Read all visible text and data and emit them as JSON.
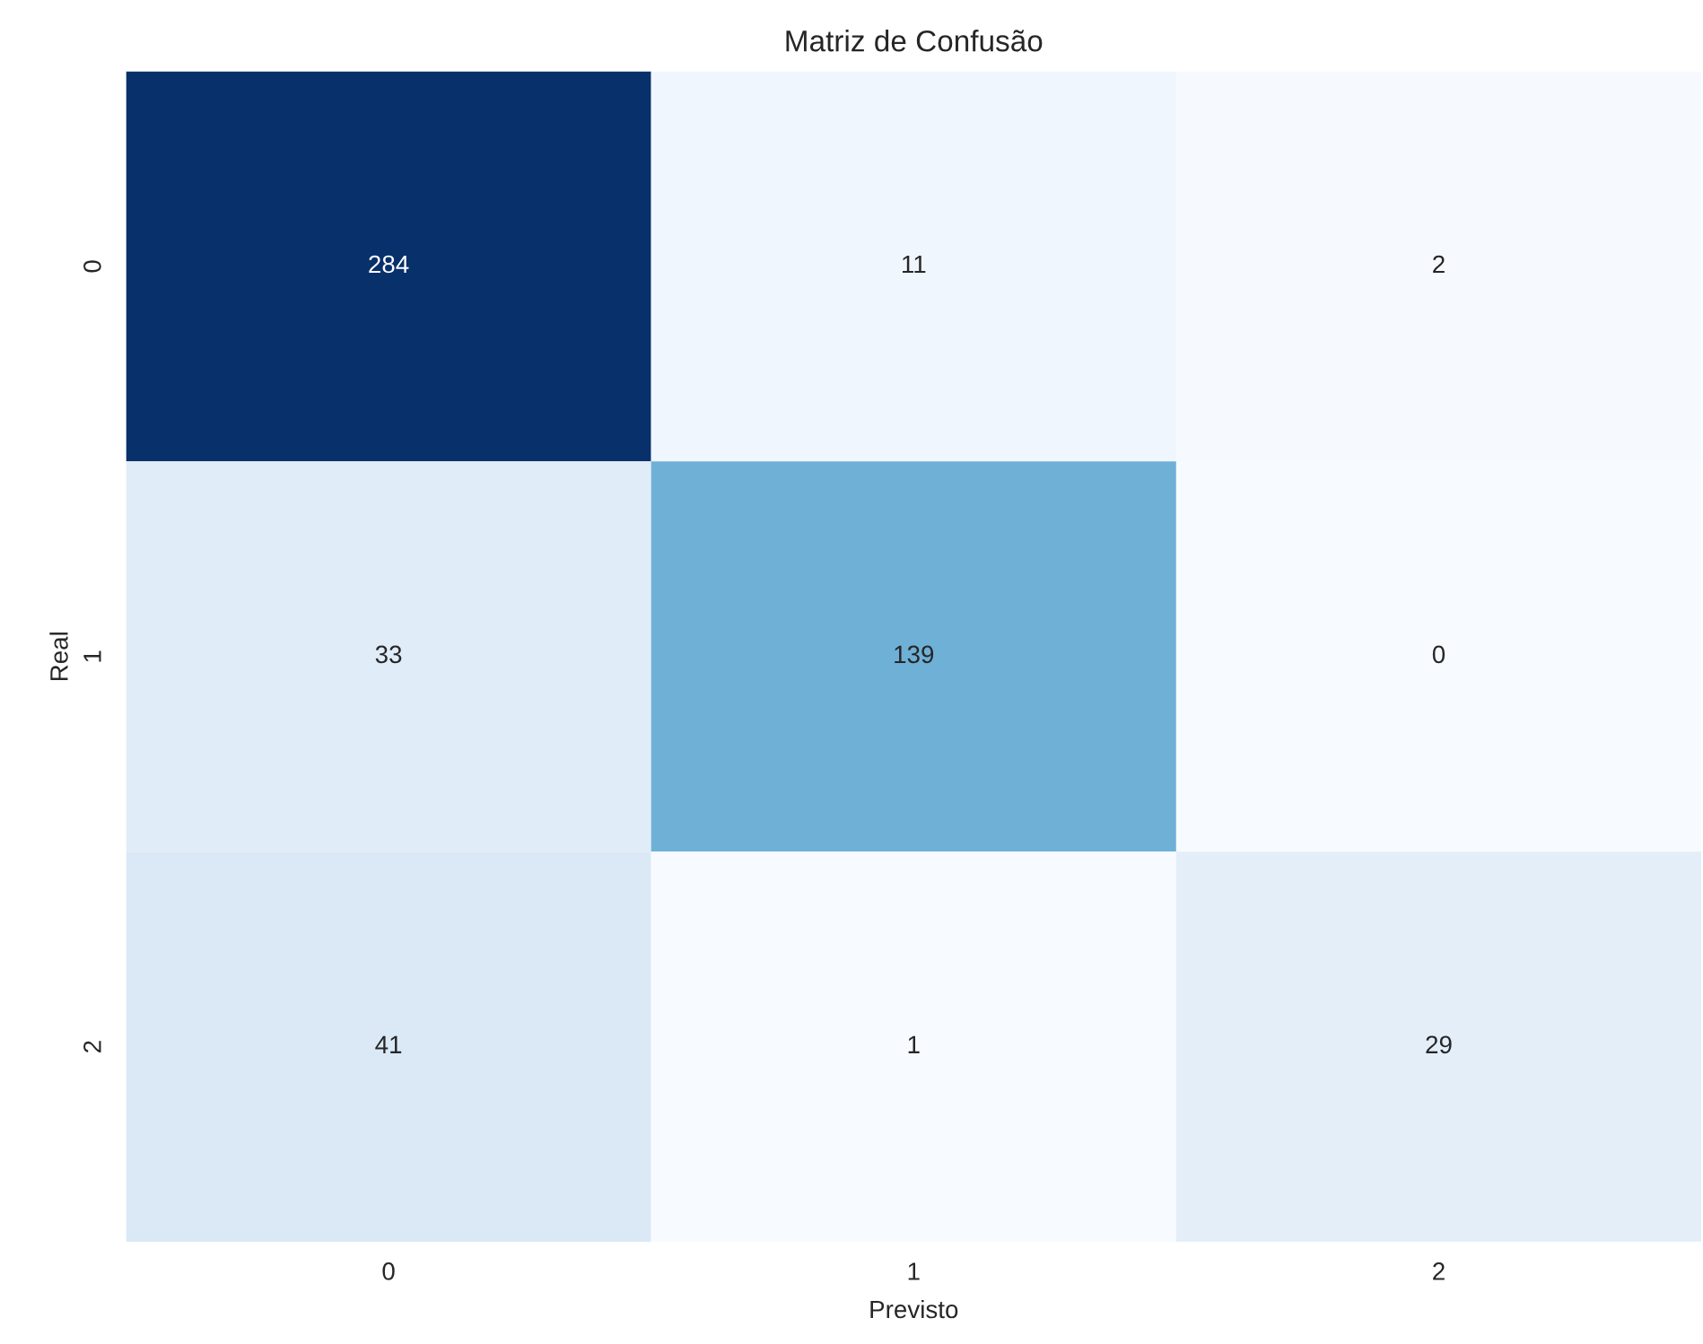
{
  "chart_data": {
    "type": "heatmap",
    "title": "Matriz de Confusão",
    "xlabel": "Previsto",
    "ylabel": "Real",
    "categories": [
      "0",
      "1",
      "2"
    ],
    "y_categories": [
      "0",
      "1",
      "2"
    ],
    "cells": [
      [
        284,
        11,
        2
      ],
      [
        33,
        139,
        0
      ],
      [
        41,
        1,
        29
      ]
    ],
    "data_labels": true
  }
}
